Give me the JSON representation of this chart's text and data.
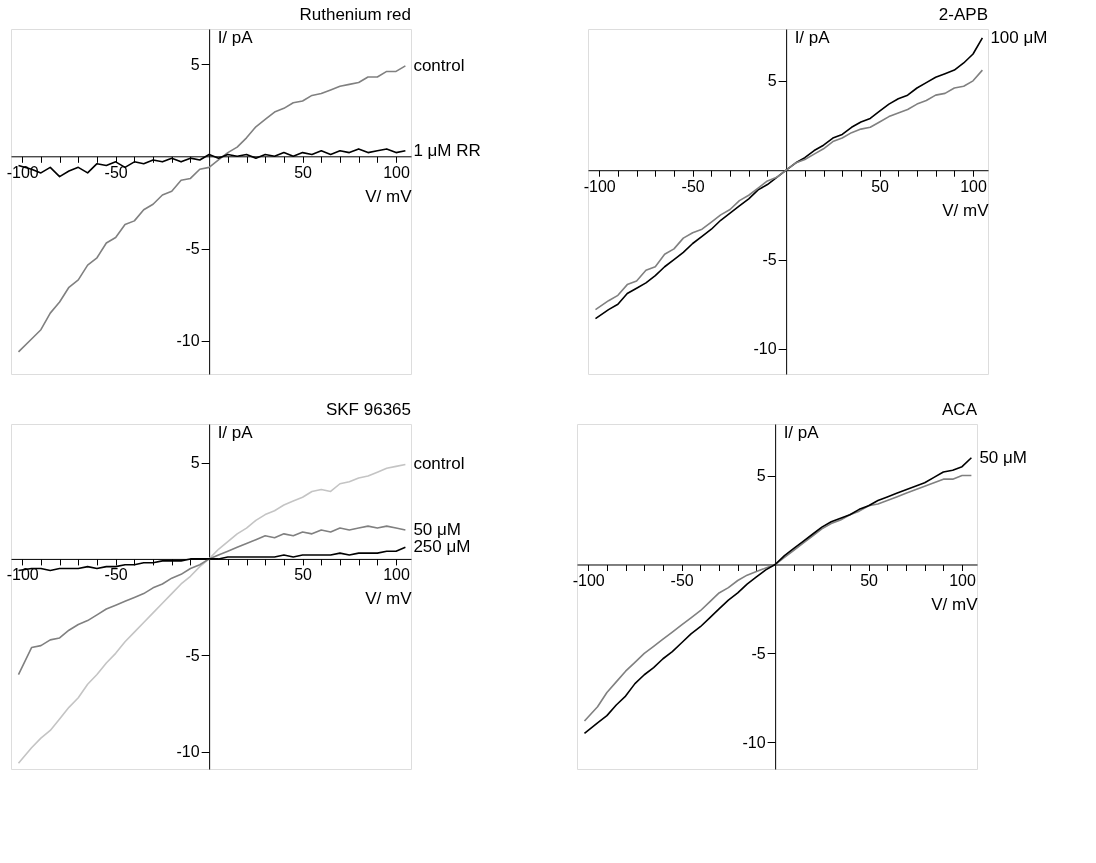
{
  "chart_data": [
    {
      "type": "line",
      "title": "Ruthenium red",
      "xlabel": "V/ mV",
      "ylabel": "I/ pA",
      "x": [
        -102,
        -95,
        -90,
        -85,
        -80,
        -75,
        -70,
        -65,
        -60,
        -55,
        -50,
        -45,
        -40,
        -35,
        -30,
        -25,
        -20,
        -15,
        -10,
        -5,
        0,
        5,
        10,
        15,
        20,
        25,
        30,
        35,
        40,
        45,
        50,
        55,
        60,
        65,
        70,
        75,
        80,
        85,
        90,
        95,
        100,
        105
      ],
      "series": [
        {
          "name": "control",
          "color": "#808080",
          "values": [
            -10.6,
            -9.9,
            -9.4,
            -8.5,
            -7.9,
            -7.1,
            -6.7,
            -5.9,
            -5.5,
            -4.7,
            -4.4,
            -3.7,
            -3.5,
            -2.9,
            -2.6,
            -2.1,
            -1.9,
            -1.3,
            -1.2,
            -0.7,
            -0.6,
            -0.2,
            0.2,
            0.5,
            1.0,
            1.6,
            2.0,
            2.4,
            2.6,
            2.9,
            3.0,
            3.3,
            3.4,
            3.6,
            3.8,
            3.9,
            4.0,
            4.3,
            4.3,
            4.6,
            4.6,
            4.9
          ]
        },
        {
          "name": "1 μM RR",
          "color": "#000000",
          "values": [
            -0.5,
            -0.7,
            -0.9,
            -0.6,
            -1.1,
            -0.8,
            -0.6,
            -0.9,
            -0.4,
            -0.5,
            -0.3,
            -0.6,
            -0.3,
            -0.4,
            -0.2,
            -0.3,
            -0.1,
            -0.3,
            -0.1,
            -0.2,
            0.1,
            -0.1,
            0.1,
            0.0,
            0.1,
            -0.1,
            0.1,
            0.0,
            0.2,
            0.0,
            0.2,
            0.1,
            0.3,
            0.1,
            0.3,
            0.2,
            0.4,
            0.2,
            0.3,
            0.4,
            0.2,
            0.3
          ]
        }
      ],
      "xlim": [
        -106,
        108
      ],
      "ylim": [
        -11.8,
        6.9
      ],
      "xticks": [
        -100,
        {
          "value": -90,
          "label": null
        },
        {
          "value": -80,
          "label": null
        },
        {
          "value": -70,
          "label": null
        },
        {
          "value": -60,
          "label": null
        },
        -50,
        {
          "value": -40,
          "label": null
        },
        {
          "value": -30,
          "label": null
        },
        {
          "value": -20,
          "label": null
        },
        {
          "value": -10,
          "label": null
        },
        {
          "value": 10,
          "label": null
        },
        {
          "value": 20,
          "label": null
        },
        {
          "value": 30,
          "label": null
        },
        {
          "value": 40,
          "label": null
        },
        50,
        {
          "value": 60,
          "label": null
        },
        {
          "value": 70,
          "label": null
        },
        {
          "value": 80,
          "label": null
        },
        {
          "value": 90,
          "label": null
        },
        100
      ],
      "yticks": [
        5,
        -5,
        -10
      ]
    },
    {
      "type": "line",
      "title": "2-APB",
      "xlabel": "V/ mV",
      "ylabel": "I/ pA",
      "x": [
        -102,
        -95,
        -90,
        -85,
        -80,
        -75,
        -70,
        -65,
        -60,
        -55,
        -50,
        -45,
        -40,
        -35,
        -30,
        -25,
        -20,
        -15,
        -10,
        -5,
        0,
        5,
        10,
        15,
        20,
        25,
        30,
        35,
        40,
        45,
        50,
        55,
        60,
        65,
        70,
        75,
        80,
        85,
        90,
        95,
        100,
        105
      ],
      "series": [
        {
          "color": "#000000",
          "name": "100 μM",
          "values": [
            -8.3,
            -7.8,
            -7.5,
            -6.9,
            -6.6,
            -6.3,
            -5.9,
            -5.4,
            -5.0,
            -4.6,
            -4.1,
            -3.7,
            -3.3,
            -2.8,
            -2.4,
            -2.0,
            -1.6,
            -1.1,
            -0.8,
            -0.4,
            0.0,
            0.4,
            0.7,
            1.1,
            1.4,
            1.8,
            2.0,
            2.4,
            2.7,
            2.9,
            3.3,
            3.7,
            4.0,
            4.2,
            4.6,
            4.9,
            5.2,
            5.4,
            5.6,
            6.0,
            6.5,
            7.4
          ]
        },
        {
          "color": "#808080",
          "values": [
            -7.8,
            -7.3,
            -7.0,
            -6.4,
            -6.2,
            -5.6,
            -5.4,
            -4.7,
            -4.4,
            -3.8,
            -3.5,
            -3.3,
            -2.9,
            -2.5,
            -2.2,
            -1.7,
            -1.4,
            -1.0,
            -0.6,
            -0.4,
            0.0,
            0.4,
            0.6,
            0.9,
            1.2,
            1.6,
            1.8,
            2.1,
            2.3,
            2.4,
            2.7,
            3.0,
            3.2,
            3.4,
            3.7,
            3.9,
            4.2,
            4.3,
            4.6,
            4.7,
            5.0,
            5.6
          ]
        }
      ],
      "xlim": [
        -106,
        108
      ],
      "ylim": [
        -11.4,
        7.9
      ],
      "xticks": [
        -100,
        {
          "value": -90,
          "label": null
        },
        {
          "value": -80,
          "label": null
        },
        {
          "value": -70,
          "label": null
        },
        {
          "value": -60,
          "label": null
        },
        -50,
        {
          "value": -40,
          "label": null
        },
        {
          "value": -30,
          "label": null
        },
        {
          "value": -20,
          "label": null
        },
        {
          "value": -10,
          "label": null
        },
        {
          "value": 10,
          "label": null
        },
        {
          "value": 20,
          "label": null
        },
        {
          "value": 30,
          "label": null
        },
        {
          "value": 40,
          "label": null
        },
        50,
        {
          "value": 60,
          "label": null
        },
        {
          "value": 70,
          "label": null
        },
        {
          "value": 80,
          "label": null
        },
        {
          "value": 90,
          "label": null
        },
        100
      ],
      "yticks": [
        5,
        -5,
        -10
      ]
    },
    {
      "type": "line",
      "title": "SKF 96365",
      "xlabel": "V/ mV",
      "ylabel": "I/ pA",
      "x": [
        -102,
        -95,
        -90,
        -85,
        -80,
        -75,
        -70,
        -65,
        -60,
        -55,
        -50,
        -45,
        -40,
        -35,
        -30,
        -25,
        -20,
        -15,
        -10,
        -5,
        0,
        5,
        10,
        15,
        20,
        25,
        30,
        35,
        40,
        45,
        50,
        55,
        60,
        65,
        70,
        75,
        80,
        85,
        90,
        95,
        100,
        105
      ],
      "series": [
        {
          "name": "control",
          "color": "#c4c4c4",
          "values": [
            -10.6,
            -9.8,
            -9.3,
            -8.9,
            -8.3,
            -7.7,
            -7.2,
            -6.5,
            -6.0,
            -5.4,
            -4.9,
            -4.3,
            -3.8,
            -3.3,
            -2.8,
            -2.3,
            -1.8,
            -1.3,
            -0.9,
            -0.4,
            0.0,
            0.5,
            0.9,
            1.3,
            1.6,
            2.0,
            2.3,
            2.5,
            2.8,
            3.0,
            3.2,
            3.5,
            3.6,
            3.5,
            3.9,
            4.0,
            4.2,
            4.3,
            4.5,
            4.7,
            4.8,
            4.9
          ]
        },
        {
          "name": "50 μM",
          "color": "#808080",
          "values": [
            -6.0,
            -4.6,
            -4.5,
            -4.2,
            -4.1,
            -3.7,
            -3.4,
            -3.2,
            -2.9,
            -2.6,
            -2.4,
            -2.2,
            -2.0,
            -1.8,
            -1.5,
            -1.3,
            -1.0,
            -0.8,
            -0.5,
            -0.3,
            0.0,
            0.2,
            0.4,
            0.6,
            0.8,
            1.0,
            1.2,
            1.1,
            1.3,
            1.2,
            1.4,
            1.3,
            1.5,
            1.4,
            1.6,
            1.5,
            1.6,
            1.7,
            1.6,
            1.7,
            1.6,
            1.5
          ]
        },
        {
          "name": "250 μM",
          "color": "#000000",
          "values": [
            -0.6,
            -0.5,
            -0.5,
            -0.6,
            -0.5,
            -0.5,
            -0.5,
            -0.4,
            -0.5,
            -0.4,
            -0.4,
            -0.3,
            -0.3,
            -0.2,
            -0.2,
            -0.1,
            -0.1,
            -0.1,
            0.0,
            0.0,
            0.0,
            0.0,
            0.1,
            0.1,
            0.1,
            0.1,
            0.1,
            0.1,
            0.2,
            0.1,
            0.2,
            0.2,
            0.2,
            0.2,
            0.3,
            0.2,
            0.3,
            0.3,
            0.3,
            0.4,
            0.4,
            0.6
          ]
        }
      ],
      "xlim": [
        -106,
        108
      ],
      "ylim": [
        -10.9,
        7.0
      ],
      "xticks": [
        -100,
        {
          "value": -90,
          "label": null
        },
        {
          "value": -80,
          "label": null
        },
        {
          "value": -70,
          "label": null
        },
        {
          "value": -60,
          "label": null
        },
        -50,
        {
          "value": -40,
          "label": null
        },
        {
          "value": -30,
          "label": null
        },
        {
          "value": -20,
          "label": null
        },
        {
          "value": -10,
          "label": null
        },
        {
          "value": 10,
          "label": null
        },
        {
          "value": 20,
          "label": null
        },
        {
          "value": 30,
          "label": null
        },
        {
          "value": 40,
          "label": null
        },
        50,
        {
          "value": 60,
          "label": null
        },
        {
          "value": 70,
          "label": null
        },
        {
          "value": 80,
          "label": null
        },
        {
          "value": 90,
          "label": null
        },
        100
      ],
      "yticks": [
        5,
        -5,
        -10
      ]
    },
    {
      "type": "line",
      "title": "ACA",
      "xlabel": "V/ mV",
      "ylabel": "I/ pA",
      "x": [
        -102,
        -95,
        -90,
        -85,
        -80,
        -75,
        -70,
        -65,
        -60,
        -55,
        -50,
        -45,
        -40,
        -35,
        -30,
        -25,
        -20,
        -15,
        -10,
        -5,
        0,
        5,
        10,
        15,
        20,
        25,
        30,
        35,
        40,
        45,
        50,
        55,
        60,
        65,
        70,
        75,
        80,
        85,
        90,
        95,
        100,
        105
      ],
      "series": [
        {
          "color": "#808080",
          "values": [
            -8.8,
            -8.0,
            -7.2,
            -6.6,
            -6.0,
            -5.5,
            -5.0,
            -4.6,
            -4.2,
            -3.8,
            -3.4,
            -3.0,
            -2.6,
            -2.1,
            -1.6,
            -1.3,
            -0.9,
            -0.6,
            -0.4,
            -0.2,
            0.0,
            0.4,
            0.8,
            1.2,
            1.6,
            2.0,
            2.3,
            2.5,
            2.8,
            3.0,
            3.3,
            3.4,
            3.6,
            3.8,
            4.0,
            4.2,
            4.4,
            4.6,
            4.8,
            4.8,
            5.0,
            5.0
          ]
        },
        {
          "name": "50 μM",
          "color": "#000000",
          "values": [
            -9.5,
            -8.9,
            -8.5,
            -7.9,
            -7.4,
            -6.7,
            -6.2,
            -5.8,
            -5.3,
            -4.9,
            -4.4,
            -3.9,
            -3.5,
            -3.0,
            -2.5,
            -2.0,
            -1.6,
            -1.1,
            -0.7,
            -0.3,
            0.0,
            0.5,
            0.9,
            1.3,
            1.7,
            2.1,
            2.4,
            2.6,
            2.8,
            3.1,
            3.3,
            3.6,
            3.8,
            4.0,
            4.2,
            4.4,
            4.6,
            4.9,
            5.2,
            5.3,
            5.5,
            6.0
          ]
        }
      ],
      "xlim": [
        -106,
        108
      ],
      "ylim": [
        -11.5,
        7.9
      ],
      "xticks": [
        -100,
        {
          "value": -90,
          "label": null
        },
        {
          "value": -80,
          "label": null
        },
        {
          "value": -70,
          "label": null
        },
        {
          "value": -60,
          "label": null
        },
        -50,
        {
          "value": -40,
          "label": null
        },
        {
          "value": -30,
          "label": null
        },
        {
          "value": -20,
          "label": null
        },
        {
          "value": -10,
          "label": null
        },
        {
          "value": 10,
          "label": null
        },
        {
          "value": 20,
          "label": null
        },
        {
          "value": 30,
          "label": null
        },
        {
          "value": 40,
          "label": null
        },
        50,
        {
          "value": 60,
          "label": null
        },
        {
          "value": 70,
          "label": null
        },
        {
          "value": 80,
          "label": null
        },
        {
          "value": 90,
          "label": null
        },
        100
      ],
      "yticks": [
        5,
        -5,
        -10
      ]
    }
  ]
}
